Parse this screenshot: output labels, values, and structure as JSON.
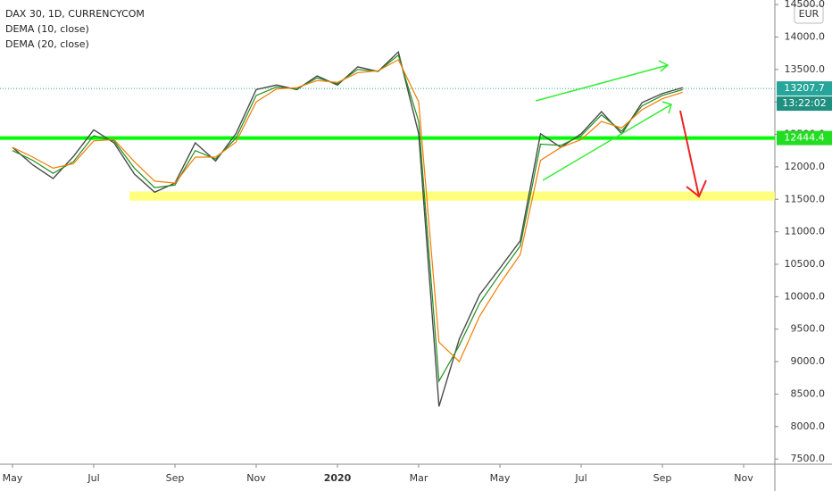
{
  "chart_data": {
    "type": "line",
    "categories": [
      "May",
      null,
      null,
      null,
      "Jul",
      null,
      null,
      null,
      "Sep",
      null,
      null,
      null,
      "Nov",
      null,
      null,
      null,
      "2020",
      null,
      null,
      null,
      "Mar",
      null,
      null,
      null,
      "May",
      null,
      null,
      null,
      "Jul",
      null,
      null,
      null,
      "Sep",
      null,
      null,
      null,
      "Nov",
      null,
      null
    ],
    "series": [
      {
        "name": "DAX 30, 1D, CURRENCYCOM",
        "color": "#4a4a4a",
        "values": [
          12300,
          12030,
          11820,
          12160,
          12570,
          12370,
          11890,
          11610,
          11750,
          12370,
          12090,
          12510,
          13190,
          13260,
          13190,
          13400,
          13260,
          13540,
          13470,
          13770,
          12510,
          8310,
          9350,
          10030,
          10440,
          10860,
          12510,
          12300,
          12510,
          12850,
          12510,
          12990,
          13130,
          13220,
          null,
          null,
          null,
          null,
          null
        ]
      },
      {
        "name": "DEMA (10, close)",
        "color": "#1e8e1e",
        "values": [
          12250,
          12100,
          11900,
          12080,
          12480,
          12400,
          11980,
          11680,
          11720,
          12250,
          12120,
          12440,
          13100,
          13230,
          13200,
          13370,
          13280,
          13500,
          13470,
          13720,
          12700,
          8700,
          9250,
          9900,
          10350,
          10780,
          12350,
          12330,
          12480,
          12800,
          12550,
          12940,
          13100,
          13190,
          null,
          null,
          null,
          null,
          null
        ]
      },
      {
        "name": "DEMA (20, close)",
        "color": "#f57c00",
        "values": [
          12300,
          12150,
          11980,
          12050,
          12400,
          12420,
          12080,
          11780,
          11750,
          12150,
          12150,
          12380,
          13000,
          13200,
          13220,
          13330,
          13300,
          13450,
          13480,
          13650,
          13000,
          9300,
          9000,
          9700,
          10200,
          10650,
          12100,
          12300,
          12420,
          12700,
          12600,
          12880,
          13050,
          13150,
          null,
          null,
          null,
          null,
          null
        ]
      }
    ],
    "ylim": [
      7420,
      14570
    ],
    "yticks": [
      {
        "value": 14500,
        "label": "14500.0"
      },
      {
        "value": 14000,
        "label": "14000.0"
      },
      {
        "value": 13500,
        "label": "13500.0"
      },
      {
        "value": 13000,
        "label": "13000.0"
      },
      {
        "value": 12500,
        "label": "12500.0"
      },
      {
        "value": 12000,
        "label": "12000.0"
      },
      {
        "value": 11500,
        "label": "11500.0"
      },
      {
        "value": 11000,
        "label": "11000.0"
      },
      {
        "value": 10500,
        "label": "10500.0"
      },
      {
        "value": 10000,
        "label": "10000.0"
      },
      {
        "value": 9500,
        "label": "9500.0"
      },
      {
        "value": 9000,
        "label": "9000.0"
      },
      {
        "value": 8500,
        "label": "8500.0"
      },
      {
        "value": 8000,
        "label": "8000.0"
      },
      {
        "value": 7500,
        "label": "7500.0"
      }
    ],
    "currency": "EUR",
    "last_price": 13207.7,
    "countdown": "13:22:02",
    "level": {
      "value": 12444.4,
      "color": "#00ff00"
    },
    "zone": {
      "from": 11480,
      "to": 11620,
      "color": "#ffff66"
    }
  }
}
